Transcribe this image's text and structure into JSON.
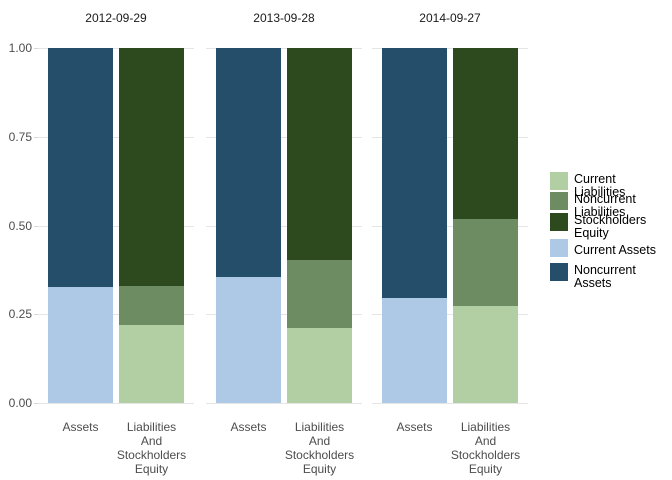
{
  "chart_data": {
    "type": "bar",
    "variant": "normalized-stacked, faceted by fiscal year end date",
    "title": "",
    "xlabel": "",
    "ylabel": "",
    "ylim": [
      0,
      1
    ],
    "grid": true,
    "legend_position": "right",
    "facet_titles": [
      "2012-09-29",
      "2013-09-28",
      "2014-09-27"
    ],
    "categories": [
      "Assets",
      "Liabilities And Stockholders Equity"
    ],
    "category_label_lines": [
      [
        "Assets"
      ],
      [
        "Liabilities",
        "And",
        "Stockholders",
        "Equity"
      ]
    ],
    "stack_order_bottom_to_top": {
      "assets": [
        "Current Assets",
        "Noncurrent Assets"
      ],
      "liabilities_and_stockholders_equity": [
        "Current Liabilities",
        "Noncurrent Liabilities",
        "Stockholders Equity"
      ]
    },
    "series_colors": {
      "Current Liabilities": "#b2cfa4",
      "Noncurrent Liabilities": "#6d8c62",
      "Stockholders Equity": "#2d4a1e",
      "Current Assets": "#aec9e6",
      "Noncurrent Assets": "#254e6b"
    },
    "values": [
      {
        "facet": "2012-09-29",
        "Current Assets": 0.327,
        "Noncurrent Assets": 0.673,
        "Current Liabilities": 0.219,
        "Noncurrent Liabilities": 0.11,
        "Stockholders Equity": 0.671
      },
      {
        "facet": "2013-09-28",
        "Current Assets": 0.354,
        "Noncurrent Assets": 0.646,
        "Current Liabilities": 0.211,
        "Noncurrent Liabilities": 0.192,
        "Stockholders Equity": 0.597
      },
      {
        "facet": "2014-09-27",
        "Current Assets": 0.296,
        "Noncurrent Assets": 0.704,
        "Current Liabilities": 0.274,
        "Noncurrent Liabilities": 0.245,
        "Stockholders Equity": 0.481
      }
    ],
    "y_ticks": [
      {
        "value": 0.0,
        "label": "0.00"
      },
      {
        "value": 0.25,
        "label": "0.25"
      },
      {
        "value": 0.5,
        "label": "0.50"
      },
      {
        "value": 0.75,
        "label": "0.75"
      },
      {
        "value": 1.0,
        "label": "1.00"
      }
    ],
    "legend": [
      {
        "label": "Current Liabilities",
        "lines": [
          "Current",
          "Liabilities"
        ],
        "color": "#b2cfa4"
      },
      {
        "label": "Noncurrent Liabilities",
        "lines": [
          "Noncurrent",
          "Liabilities"
        ],
        "color": "#6d8c62"
      },
      {
        "label": "Stockholders Equity",
        "lines": [
          "Stockholders",
          "Equity"
        ],
        "color": "#2d4a1e"
      },
      {
        "label": "Current Assets",
        "lines": [
          "Current Assets"
        ],
        "color": "#aec9e6"
      },
      {
        "label": "Noncurrent Assets",
        "lines": [
          "Noncurrent",
          "Assets"
        ],
        "color": "#254e6b"
      }
    ],
    "colors": {
      "gridline": "#e5e5e5",
      "axis_text": "#4d4d4d",
      "facet_title_text": "#1a1a1a",
      "background": "#ffffff"
    }
  }
}
